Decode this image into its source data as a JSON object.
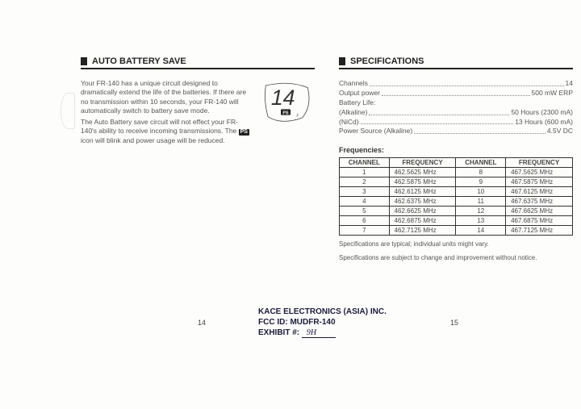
{
  "left": {
    "heading": "AUTO BATTERY SAVE",
    "para1": "Your FR-140 has a unique circuit designed to dramatically extend the life of the batteries. If there are no transmission within 10 seconds, your FR-140 will automatically switch to battery save mode.",
    "para2a": "The Auto Battery save circuit will not effect your FR-140's ability to receive incoming transmissions. The ",
    "ps_badge": "PS",
    "para2b": " icon will blink and power usage will be reduced.",
    "lcd_digits": "14",
    "lcd_ps": "PS",
    "page_number": "14"
  },
  "right": {
    "heading": "SPECIFICATIONS",
    "specs": [
      {
        "label": "Channels",
        "value": "14"
      },
      {
        "label": "Output power",
        "value": "500 mW ERP"
      },
      {
        "label": "Battery Life:",
        "value": ""
      },
      {
        "label": "(Alkaline)",
        "value": "50 Hours (2300 mA)"
      },
      {
        "label": "(NiCd)",
        "value": "13 Hours (600 mA)"
      },
      {
        "label": "Power Source (Alkaline)",
        "value": "4.5V DC"
      }
    ],
    "freq_title": "Frequencies:",
    "freq_cols": [
      "CHANNEL",
      "FREQUENCY",
      "CHANNEL",
      "FREQUENCY"
    ],
    "freq_rows": [
      [
        "1",
        "462.5625  MHz",
        "8",
        "467.5625  MHz"
      ],
      [
        "2",
        "462.5875  MHz",
        "9",
        "467.5875  MHz"
      ],
      [
        "3",
        "462.6125  MHz",
        "10",
        "467.6125  MHz"
      ],
      [
        "4",
        "462.6375  MHz",
        "11",
        "467.6375  MHz"
      ],
      [
        "5",
        "462.6625  MHz",
        "12",
        "467.6625  MHz"
      ],
      [
        "6",
        "462.6875  MHz",
        "13",
        "467.6875  MHz"
      ],
      [
        "7",
        "462.7125  MHz",
        "14",
        "467.7125  MHz"
      ]
    ],
    "note1": "Specifications are typical; individual units might vary.",
    "note2": "Specifications are subject to change and improvement without notice.",
    "page_number": "15"
  },
  "footer": {
    "company": "KACE ELECTRONICS (ASIA) INC.",
    "fcc": "FCC ID:  MUDFR-140",
    "exhibit_label": "EXHIBIT #:",
    "exhibit_value": "9H"
  },
  "style": {
    "page_bg": "#fdfdfc",
    "text_color": "#3a3a3a",
    "rule_color": "#222222",
    "table_border": "#333333"
  }
}
